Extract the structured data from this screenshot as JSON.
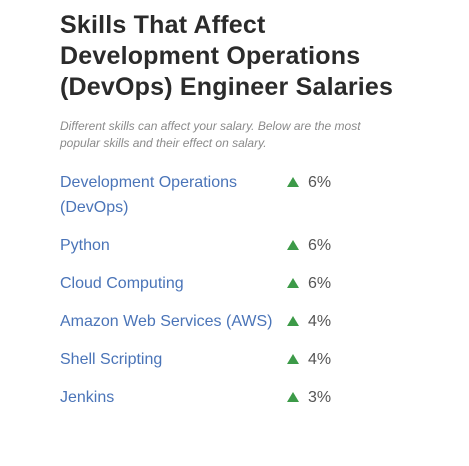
{
  "header": {
    "title_line1": "Skills That Affect",
    "title_line2": "Development Operations",
    "title_line3": "(DevOps) Engineer Salaries",
    "subtitle": "Different skills can affect your salary. Below are the most popular skills and their effect on salary."
  },
  "colors": {
    "title": "#2b2b2b",
    "subtitle": "#8a8a8a",
    "link": "#4a74b8",
    "arrow_up": "#3c9a48",
    "percent": "#555555"
  },
  "skills": [
    {
      "name": "Development Operations (DevOps)",
      "effect": "6%",
      "direction_icon": "arrow-up-icon"
    },
    {
      "name": "Python",
      "effect": "6%",
      "direction_icon": "arrow-up-icon"
    },
    {
      "name": "Cloud Computing",
      "effect": "6%",
      "direction_icon": "arrow-up-icon"
    },
    {
      "name": "Amazon Web Services (AWS)",
      "effect": "4%",
      "direction_icon": "arrow-up-icon"
    },
    {
      "name": "Shell Scripting",
      "effect": "4%",
      "direction_icon": "arrow-up-icon"
    },
    {
      "name": "Jenkins",
      "effect": "3%",
      "direction_icon": "arrow-up-icon"
    }
  ]
}
